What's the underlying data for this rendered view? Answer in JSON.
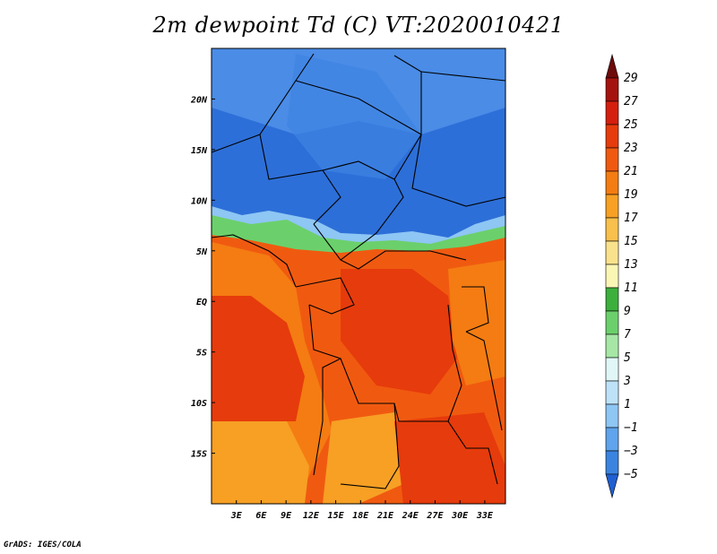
{
  "title": "2m dewpoint Td (C) VT:2020010421",
  "footer": "GrADS: IGES/COLA",
  "map": {
    "lon_range": [
      0,
      35.5
    ],
    "lat_range": [
      -20,
      25
    ],
    "x_ticks": [
      {
        "lon": 3,
        "label": "3E"
      },
      {
        "lon": 6,
        "label": "6E"
      },
      {
        "lon": 9,
        "label": "9E"
      },
      {
        "lon": 12,
        "label": "12E"
      },
      {
        "lon": 15,
        "label": "15E"
      },
      {
        "lon": 18,
        "label": "18E"
      },
      {
        "lon": 21,
        "label": "21E"
      },
      {
        "lon": 24,
        "label": "24E"
      },
      {
        "lon": 27,
        "label": "27E"
      },
      {
        "lon": 30,
        "label": "30E"
      },
      {
        "lon": 33,
        "label": "33E"
      }
    ],
    "y_ticks": [
      {
        "lat": 20,
        "label": "20N"
      },
      {
        "lat": 15,
        "label": "15N"
      },
      {
        "lat": 10,
        "label": "10N"
      },
      {
        "lat": 5,
        "label": "5N"
      },
      {
        "lat": 0,
        "label": "EQ"
      },
      {
        "lat": -5,
        "label": "5S"
      },
      {
        "lat": -10,
        "label": "10S"
      },
      {
        "lat": -15,
        "label": "15S"
      }
    ]
  },
  "colorbar": {
    "labels": [
      "29",
      "27",
      "25",
      "23",
      "21",
      "19",
      "17",
      "15",
      "13",
      "11",
      "9",
      "7",
      "5",
      "3",
      "1",
      "−1",
      "−3",
      "−5"
    ],
    "colors": [
      "#6e0b0b",
      "#a5130e",
      "#d41f0e",
      "#e63b0c",
      "#f05a10",
      "#f47c12",
      "#f7a024",
      "#f8c04c",
      "#fae28c",
      "#fbf6b4",
      "#3caf3c",
      "#6bd06b",
      "#a6e7a6",
      "#e1f7f7",
      "#bde2f8",
      "#8ec6f4",
      "#5fa4ec",
      "#3a84e0",
      "#1f5fd1"
    ]
  }
}
